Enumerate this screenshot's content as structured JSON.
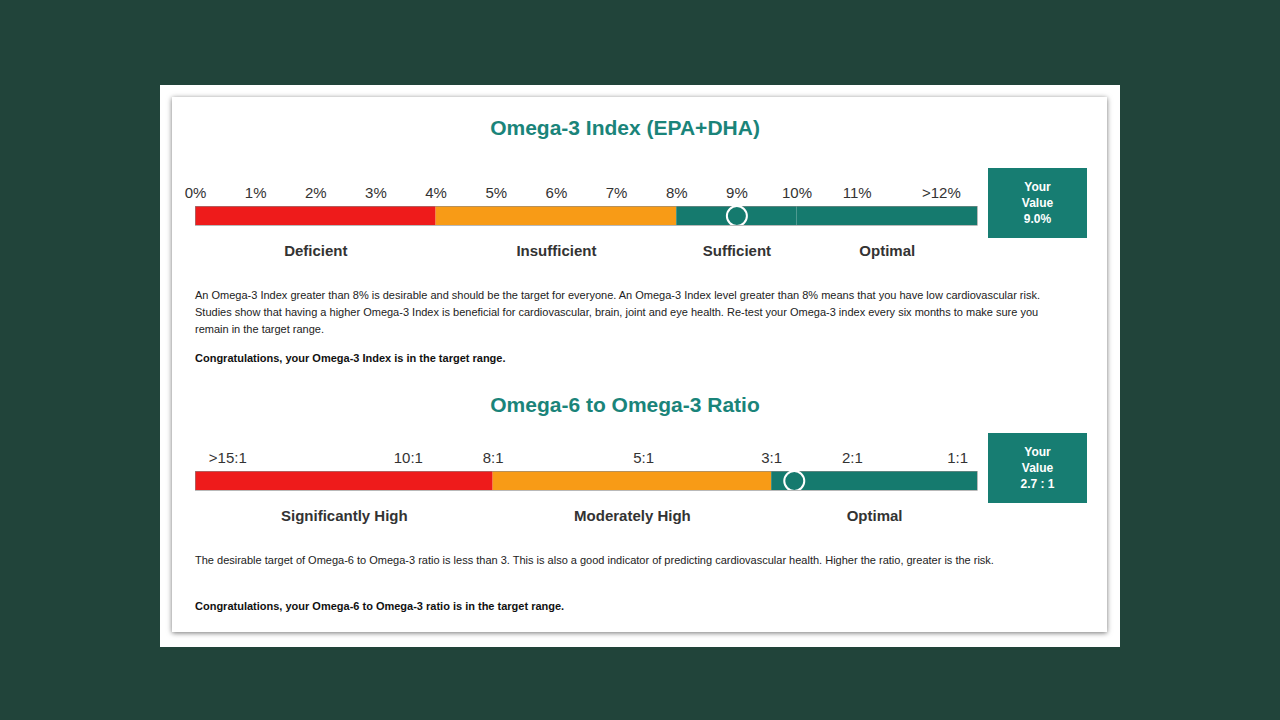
{
  "chart_data": [
    {
      "type": "gauge",
      "title": "Omega-3 Index (EPA+DHA)",
      "xlim": [
        0,
        13
      ],
      "xticks": [
        {
          "value": 0,
          "label": "0%"
        },
        {
          "value": 1,
          "label": "1%"
        },
        {
          "value": 2,
          "label": "2%"
        },
        {
          "value": 3,
          "label": "3%"
        },
        {
          "value": 4,
          "label": "4%"
        },
        {
          "value": 5,
          "label": "5%"
        },
        {
          "value": 6,
          "label": "6%"
        },
        {
          "value": 7,
          "label": "7%"
        },
        {
          "value": 8,
          "label": "8%"
        },
        {
          "value": 9,
          "label": "9%"
        },
        {
          "value": 10,
          "label": "10%"
        },
        {
          "value": 11,
          "label": "11%"
        },
        {
          "value": 12.4,
          "label": ">12%"
        }
      ],
      "bands": [
        {
          "label": "Deficient",
          "from": 0,
          "to": 4,
          "color": "#ee1b1b"
        },
        {
          "label": "Insufficient",
          "from": 4,
          "to": 8,
          "color": "#f89b16"
        },
        {
          "label": "Sufficient",
          "from": 8,
          "to": 10,
          "color": "#157a6e"
        },
        {
          "label": "Optimal",
          "from": 10,
          "to": 13,
          "color": "#157a6e"
        }
      ],
      "value": 9.0,
      "value_label": "9.0%",
      "value_title": "Your Value",
      "color": "#177d72",
      "marker": "circle",
      "caption": "An Omega-3 Index greater than 8% is desirable and should be the target for everyone. An Omega-3 Index level greater than 8% means that you have low cardiovascular risk. Studies show that having a higher Omega-3 Index is beneficial for cardiovascular, brain, joint and eye health. Re-test your Omega-3 index every six months to make sure you remain in the target range.",
      "note": "Congratulations, your Omega-3 Index is in the target range."
    },
    {
      "type": "gauge",
      "title": "Omega-6 to Omega-3 Ratio",
      "xlim": [
        16,
        0.85
      ],
      "xticks": [
        {
          "value": 15,
          "label": ">15:1"
        },
        {
          "value": 10,
          "label": "10:1"
        },
        {
          "value": 8,
          "label": "8:1"
        },
        {
          "value": 5,
          "label": "5:1"
        },
        {
          "value": 3,
          "label": "3:1"
        },
        {
          "value": 2,
          "label": "2:1"
        },
        {
          "value": 1,
          "label": "1:1"
        }
      ],
      "bands": [
        {
          "label": "Significantly High",
          "from": 16,
          "to": 8,
          "color": "#ee1b1b"
        },
        {
          "label": "Moderately High",
          "from": 8,
          "to": 3,
          "color": "#f89b16"
        },
        {
          "label": "Optimal",
          "from": 3,
          "to": 0.85,
          "color": "#157a6e"
        }
      ],
      "value": 2.7,
      "value_label": "2.7 : 1",
      "value_title": "Your Value",
      "color": "#177d72",
      "marker": "circle",
      "caption": "The desirable target of Omega-6 to Omega-3 ratio is less than 3. This is also a good indicator of predicting cardiovascular health. Higher the ratio, greater is the risk.",
      "note": "Congratulations, your Omega-6 to Omega-3 ratio is in the target range."
    }
  ]
}
